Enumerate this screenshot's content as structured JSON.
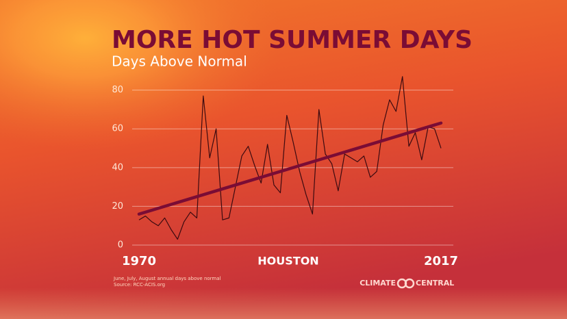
{
  "chart_data": {
    "type": "line",
    "title": "MORE HOT SUMMER DAYS",
    "subtitle": "Days Above Normal",
    "location": "HOUSTON",
    "notes": [
      "June, July, August annual days above normal",
      "Source: RCC-ACIS.org"
    ],
    "brand": [
      "CLIMATE",
      "CENTRAL"
    ],
    "x": [
      1970,
      1971,
      1972,
      1973,
      1974,
      1975,
      1976,
      1977,
      1978,
      1979,
      1980,
      1981,
      1982,
      1983,
      1984,
      1985,
      1986,
      1987,
      1988,
      1989,
      1990,
      1991,
      1992,
      1993,
      1994,
      1995,
      1996,
      1997,
      1998,
      1999,
      2000,
      2001,
      2002,
      2003,
      2004,
      2005,
      2006,
      2007,
      2008,
      2009,
      2010,
      2011,
      2012,
      2013,
      2014,
      2015,
      2016,
      2017
    ],
    "series": [
      {
        "color": "#3a0a10",
        "values": [
          13,
          15,
          12,
          10,
          14,
          8,
          3,
          12,
          17,
          14,
          77,
          45,
          60,
          13,
          14,
          30,
          46,
          51,
          41,
          32,
          52,
          31,
          27,
          67,
          53,
          38,
          26,
          16,
          70,
          47,
          42,
          28,
          47,
          45,
          43,
          46,
          35,
          38,
          62,
          75,
          69,
          87,
          51,
          58,
          44,
          61,
          60,
          50
        ]
      }
    ],
    "trend": {
      "x": [
        1970,
        2017
      ],
      "values": [
        16,
        63
      ],
      "color": "#7a0c35"
    },
    "xlim": [
      1970,
      2017
    ],
    "xticks": [
      1970,
      2017
    ],
    "ylim": [
      0,
      88
    ],
    "yticks": [
      0,
      20,
      40,
      60,
      80
    ],
    "grid": true
  }
}
